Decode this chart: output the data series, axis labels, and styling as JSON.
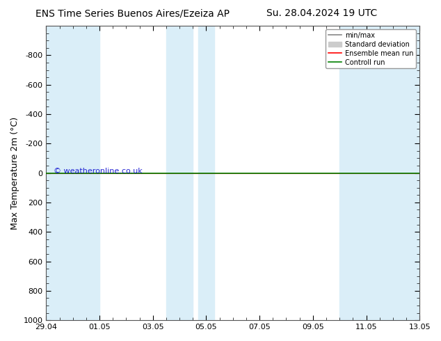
{
  "title_left": "ENS Time Series Buenos Aires/Ezeiza AP",
  "title_right": "Su. 28.04.2024 19 UTC",
  "ylabel": "Max Temperature 2m (°C)",
  "watermark": "© weatheronline.co.uk",
  "ylim_top": -1000,
  "ylim_bottom": 1000,
  "yticks": [
    -800,
    -600,
    -400,
    -200,
    0,
    200,
    400,
    600,
    800,
    1000
  ],
  "xtick_labels": [
    "29.04",
    "01.05",
    "03.05",
    "05.05",
    "07.05",
    "09.05",
    "11.05",
    "13.05"
  ],
  "xtick_positions": [
    0,
    2,
    4,
    6,
    8,
    10,
    12,
    14
  ],
  "x_start": 0,
  "x_end": 14,
  "shaded_regions": [
    [
      0,
      2
    ],
    [
      4.5,
      5.5
    ],
    [
      5.7,
      6.3
    ],
    [
      11,
      14
    ]
  ],
  "shaded_color": "#daeef8",
  "green_line_y": 0,
  "green_line_color": "#008000",
  "red_line_color": "#ff0000",
  "legend_labels": [
    "min/max",
    "Standard deviation",
    "Ensemble mean run",
    "Controll run"
  ],
  "legend_line_color": "#888888",
  "legend_shade_color": "#cccccc",
  "legend_red": "#ff0000",
  "legend_green": "#008000",
  "background_color": "#ffffff",
  "plot_bg_color": "#ffffff",
  "title_fontsize": 10,
  "tick_fontsize": 8,
  "ylabel_fontsize": 9
}
